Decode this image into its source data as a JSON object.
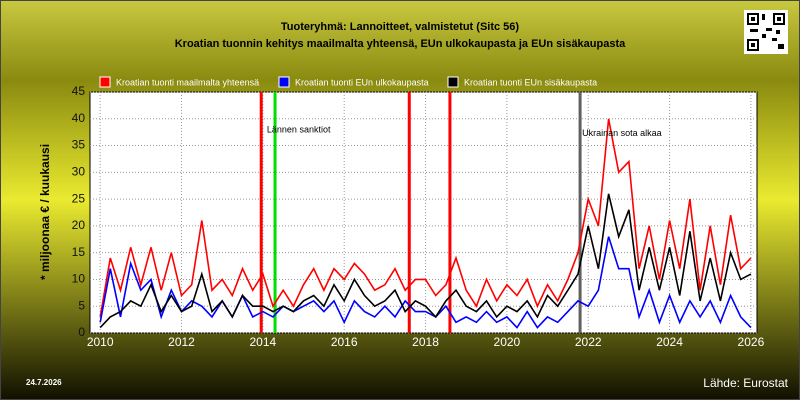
{
  "chart_data": {
    "type": "line",
    "title": "Tuoteryhmä: Lannoitteet, valmistetut (Sitc 56)",
    "subtitle": "Kroatian tuonnin kehitys maailmalta yhteensä, EUn ulkokaupasta ja EUn sisäkaupasta",
    "y_label": "* miljoonaa € / kuukausi",
    "date": "24.7.2026",
    "source": "Lähde: Eurostat",
    "x": [
      2010,
      2010.25,
      2010.5,
      2010.75,
      2011,
      2011.25,
      2011.5,
      2011.75,
      2012,
      2012.25,
      2012.5,
      2012.75,
      2013,
      2013.25,
      2013.5,
      2013.75,
      2014,
      2014.25,
      2014.5,
      2014.75,
      2015,
      2015.25,
      2015.5,
      2015.75,
      2016,
      2016.25,
      2016.5,
      2016.75,
      2017,
      2017.25,
      2017.5,
      2017.75,
      2018,
      2018.25,
      2018.5,
      2018.75,
      2019,
      2019.25,
      2019.5,
      2019.75,
      2020,
      2020.25,
      2020.5,
      2020.75,
      2021,
      2021.25,
      2021.5,
      2021.75,
      2022,
      2022.25,
      2022.5,
      2022.75,
      2023,
      2023.25,
      2023.5,
      2023.75,
      2024,
      2024.25,
      2024.5,
      2024.75,
      2025,
      2025.25,
      2025.5,
      2025.75,
      2026
    ],
    "series": [
      {
        "name": "Kroatian tuonti maailmalta yhteensä",
        "color": "#ff0000",
        "values": [
          3,
          14,
          8,
          16,
          9,
          16,
          8,
          15,
          7,
          9,
          21,
          8,
          10,
          7,
          12,
          8,
          11,
          5,
          8,
          5,
          9,
          12,
          8,
          12,
          10,
          13,
          11,
          8,
          9,
          12,
          8,
          10,
          10,
          7,
          9,
          14,
          8,
          5,
          10,
          6,
          9,
          7,
          10,
          5,
          9,
          6,
          10,
          15,
          25,
          20,
          40,
          30,
          32,
          12,
          20,
          10,
          21,
          12,
          25,
          8,
          20,
          9,
          22,
          12,
          14
        ]
      },
      {
        "name": "Kroatian tuonti EUn ulkokaupasta",
        "color": "#0000ff",
        "values": [
          2,
          12,
          3,
          13,
          8,
          10,
          3,
          8,
          4,
          6,
          5,
          3,
          6,
          3,
          7,
          3,
          4,
          3,
          5,
          4,
          5,
          6,
          4,
          6,
          2,
          6,
          4,
          3,
          5,
          3,
          6,
          4,
          4,
          3,
          5,
          2,
          3,
          2,
          4,
          2,
          3,
          1,
          4,
          1,
          3,
          2,
          4,
          6,
          5,
          8,
          18,
          12,
          12,
          3,
          8,
          2,
          7,
          2,
          6,
          3,
          6,
          2,
          7,
          3,
          1
        ]
      },
      {
        "name": "Kroatian tuonti EUn sisäkaupasta",
        "color": "#000000",
        "values": [
          1,
          3,
          4,
          6,
          5,
          9,
          4,
          7,
          4,
          5,
          11,
          4,
          6,
          3,
          7,
          5,
          5,
          4,
          5,
          4,
          6,
          7,
          5,
          9,
          6,
          10,
          7,
          5,
          6,
          8,
          4,
          6,
          5,
          3,
          6,
          8,
          5,
          4,
          6,
          3,
          5,
          4,
          6,
          3,
          7,
          5,
          8,
          11,
          20,
          12,
          26,
          18,
          23,
          8,
          16,
          8,
          16,
          7,
          19,
          6,
          14,
          6,
          15,
          10,
          11
        ]
      }
    ],
    "vlines": [
      {
        "x": 2013.96,
        "color": "#ff0000"
      },
      {
        "x": 2014.3,
        "color": "#00e000"
      },
      {
        "x": 2017.6,
        "color": "#ff0000"
      },
      {
        "x": 2018.6,
        "color": "#ff0000"
      },
      {
        "x": 2021.8,
        "color": "#606060"
      }
    ],
    "annotations": [
      {
        "text": "Lännen sanktiot",
        "x": 2014.1,
        "y": 37.9
      },
      {
        "text": "Ukrainan sota alkaa",
        "x": 2021.85,
        "y": 37.2
      }
    ],
    "xlim": [
      2009.75,
      2026.15
    ],
    "ylim": [
      0,
      45
    ],
    "xticks": [
      2010,
      2012,
      2014,
      2016,
      2018,
      2020,
      2022,
      2024,
      2026
    ],
    "yticks": [
      0,
      5,
      10,
      15,
      20,
      25,
      30,
      35,
      40,
      45
    ],
    "grid": true
  }
}
